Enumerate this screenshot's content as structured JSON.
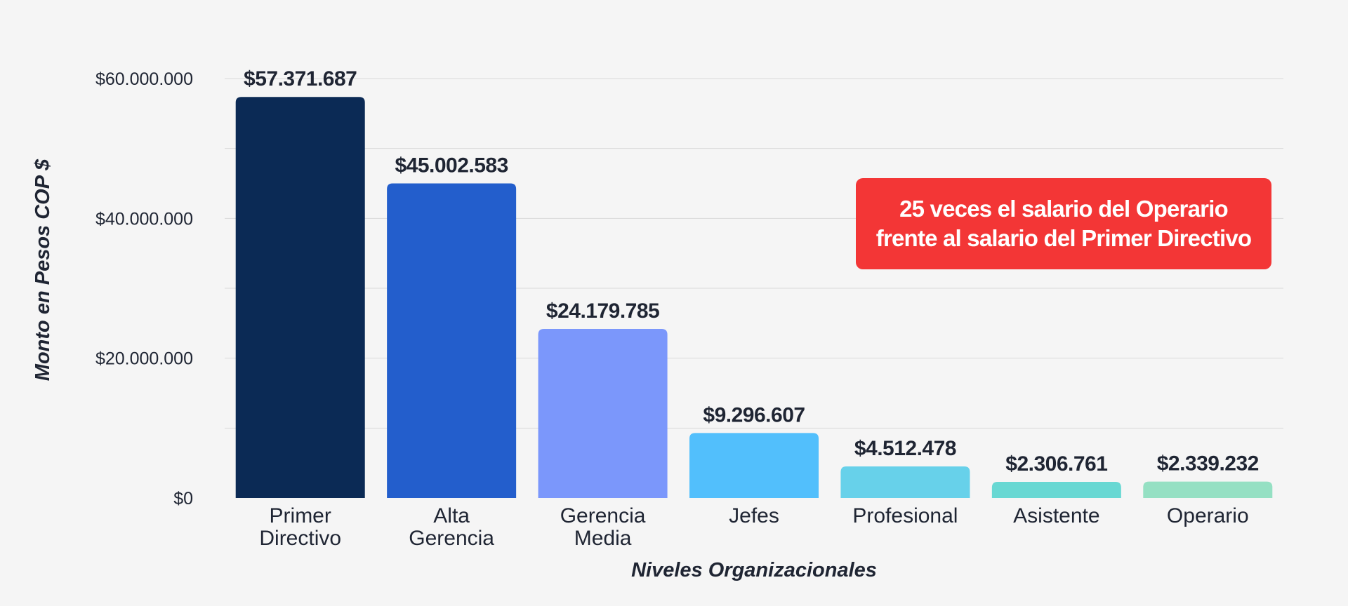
{
  "chart_data": {
    "type": "bar",
    "title": "",
    "xlabel": "Niveles Organizacionales",
    "ylabel": "Monto en Pesos COP $",
    "ylim": [
      0,
      60000000
    ],
    "grid": true,
    "categories": [
      [
        "Primer",
        "Directivo"
      ],
      [
        "Alta",
        "Gerencia"
      ],
      [
        "Gerencia",
        "Media"
      ],
      [
        "Jefes"
      ],
      [
        "Profesional"
      ],
      [
        "Asistente"
      ],
      [
        "Operario"
      ]
    ],
    "values": [
      57371687,
      45002583,
      24179785,
      9296607,
      4512478,
      2306761,
      2339232
    ],
    "value_labels": [
      "$57.371.687",
      "$45.002.583",
      "$24.179.785",
      "$9.296.607",
      "$4.512.478",
      "$2.306.761",
      "$2.339.232"
    ],
    "colors": [
      "#0b2a55",
      "#235ecc",
      "#7b97fb",
      "#52bffc",
      "#67d1ea",
      "#68d8d3",
      "#95e0c3"
    ],
    "yticks": [
      {
        "value": 0,
        "label": "$0"
      },
      {
        "value": 20000000,
        "label": "$20.000.000"
      },
      {
        "value": 40000000,
        "label": "$40.000.000"
      },
      {
        "value": 60000000,
        "label": "$60.000.000"
      }
    ],
    "minor_gridlines": [
      10000000,
      30000000,
      50000000
    ],
    "annotation": {
      "lines": [
        "25 veces el salario del Operario",
        "frente al salario del Primer Directivo"
      ],
      "background": "#f33636"
    }
  }
}
